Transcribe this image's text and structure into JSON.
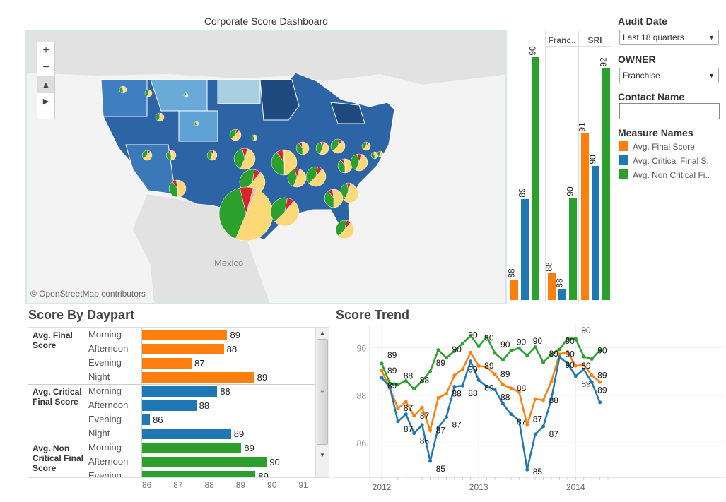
{
  "title": "Corporate Score Dashboard",
  "colors": {
    "final": "#ff7f0e",
    "critical": "#1f77b4",
    "noncritical": "#2ca02c",
    "map_blue": "#2d64a5"
  },
  "map": {
    "zoom_in": "+",
    "zoom_out": "−",
    "pin_icon": "pin-icon",
    "expand_icon": "play-icon",
    "country_label": "Mexico",
    "attribution": "© OpenStreetMap contributors"
  },
  "owner_bars": {
    "panes": [
      {
        "header": "",
        "range": [
          87.9,
          90.4
        ],
        "values": [
          88.1,
          88.9,
          90.3
        ],
        "labels": [
          "88",
          "89",
          "90"
        ]
      },
      {
        "header": "Franc..",
        "range": [
          87.9,
          92.6
        ],
        "values": [
          88.4,
          88.1,
          89.8
        ],
        "labels": [
          "88",
          "88",
          "90"
        ]
      },
      {
        "header": "SRI",
        "range": [
          87.9,
          92.6
        ],
        "values": [
          91.0,
          90.4,
          92.2
        ],
        "labels": [
          "91",
          "90",
          "92"
        ]
      }
    ]
  },
  "filters": {
    "audit_date": {
      "label": "Audit Date",
      "value": "Last 18 quarters"
    },
    "owner": {
      "label": "OWNER",
      "value": "Franchise"
    },
    "contact": {
      "label": "Contact Name",
      "value": ""
    },
    "legend": {
      "title": "Measure Names",
      "items": [
        "Avg. Final Score",
        "Avg. Critical Final S..",
        "Avg. Non Critical Fi.."
      ]
    }
  },
  "daypart": {
    "title": "Score By Daypart",
    "axis": {
      "min": 85.8,
      "max": 91.2,
      "ticks": [
        "86",
        "87",
        "88",
        "89",
        "90",
        "91"
      ]
    },
    "groups": [
      {
        "name": "Avg. Final Score",
        "rows": [
          {
            "label": "Morning",
            "value": 88.52,
            "text": "89"
          },
          {
            "label": "Afternoon",
            "value": 88.41,
            "text": "88"
          },
          {
            "label": "Evening",
            "value": 87.38,
            "text": "87"
          },
          {
            "label": "Night",
            "value": 89.38,
            "text": "89"
          }
        ]
      },
      {
        "name": "Avg. Critical Final Score",
        "rows": [
          {
            "label": "Morning",
            "value": 88.2,
            "text": "88"
          },
          {
            "label": "Afternoon",
            "value": 87.53,
            "text": "88"
          },
          {
            "label": "Evening",
            "value": 86.05,
            "text": "86"
          },
          {
            "label": "Night",
            "value": 88.64,
            "text": "89"
          }
        ]
      },
      {
        "name": "Avg. Non Critical Final Score",
        "rows": [
          {
            "label": "Morning",
            "value": 88.97,
            "text": "89"
          },
          {
            "label": "Afternoon",
            "value": 89.78,
            "text": "90"
          },
          {
            "label": "Evening",
            "value": 89.42,
            "text": "89"
          }
        ]
      }
    ]
  },
  "chart_data": {
    "type": "line",
    "title": "Score Trend",
    "x_start": "2012-01",
    "x_step": "month",
    "x_ticks": [
      "2012",
      "2013",
      "2014"
    ],
    "y_ticks": [
      "86",
      "88",
      "90"
    ],
    "ylim": [
      84.6,
      90.8
    ],
    "series": [
      {
        "name": "Avg. Non Critical Final Score",
        "color": "#2ca02c",
        "values": [
          89.33,
          88.5,
          88.45,
          88.6,
          88.27,
          88.6,
          89.0,
          89.9,
          89.57,
          89.85,
          90.17,
          90.5,
          90.05,
          90.46,
          89.77,
          89.48,
          89.87,
          89.97,
          89.67,
          90.02,
          89.38,
          89.72,
          89.92,
          90.38,
          90.37,
          89.62,
          89.52,
          89.89
        ]
      },
      {
        "name": "Avg. Final Score",
        "color": "#ff7f0e",
        "values": [
          89.03,
          88.29,
          87.45,
          87.72,
          87.13,
          87.48,
          86.52,
          87.89,
          88.06,
          88.83,
          89.08,
          89.79,
          89.23,
          89.18,
          88.88,
          88.44,
          88.29,
          88.14,
          86.75,
          87.84,
          87.79,
          88.58,
          89.72,
          89.82,
          89.23,
          89.28,
          88.83,
          88.55
        ]
      },
      {
        "name": "Avg. Critical Final Score",
        "color": "#1f77b4",
        "values": [
          88.73,
          88.34,
          86.9,
          87.2,
          86.4,
          86.75,
          85.23,
          86.64,
          87.08,
          88.36,
          88.4,
          89.42,
          88.63,
          88.36,
          88.24,
          87.64,
          87.2,
          86.95,
          84.87,
          86.36,
          86.69,
          87.85,
          89.6,
          89.33,
          88.8,
          89.08,
          88.54,
          87.7
        ]
      }
    ]
  }
}
